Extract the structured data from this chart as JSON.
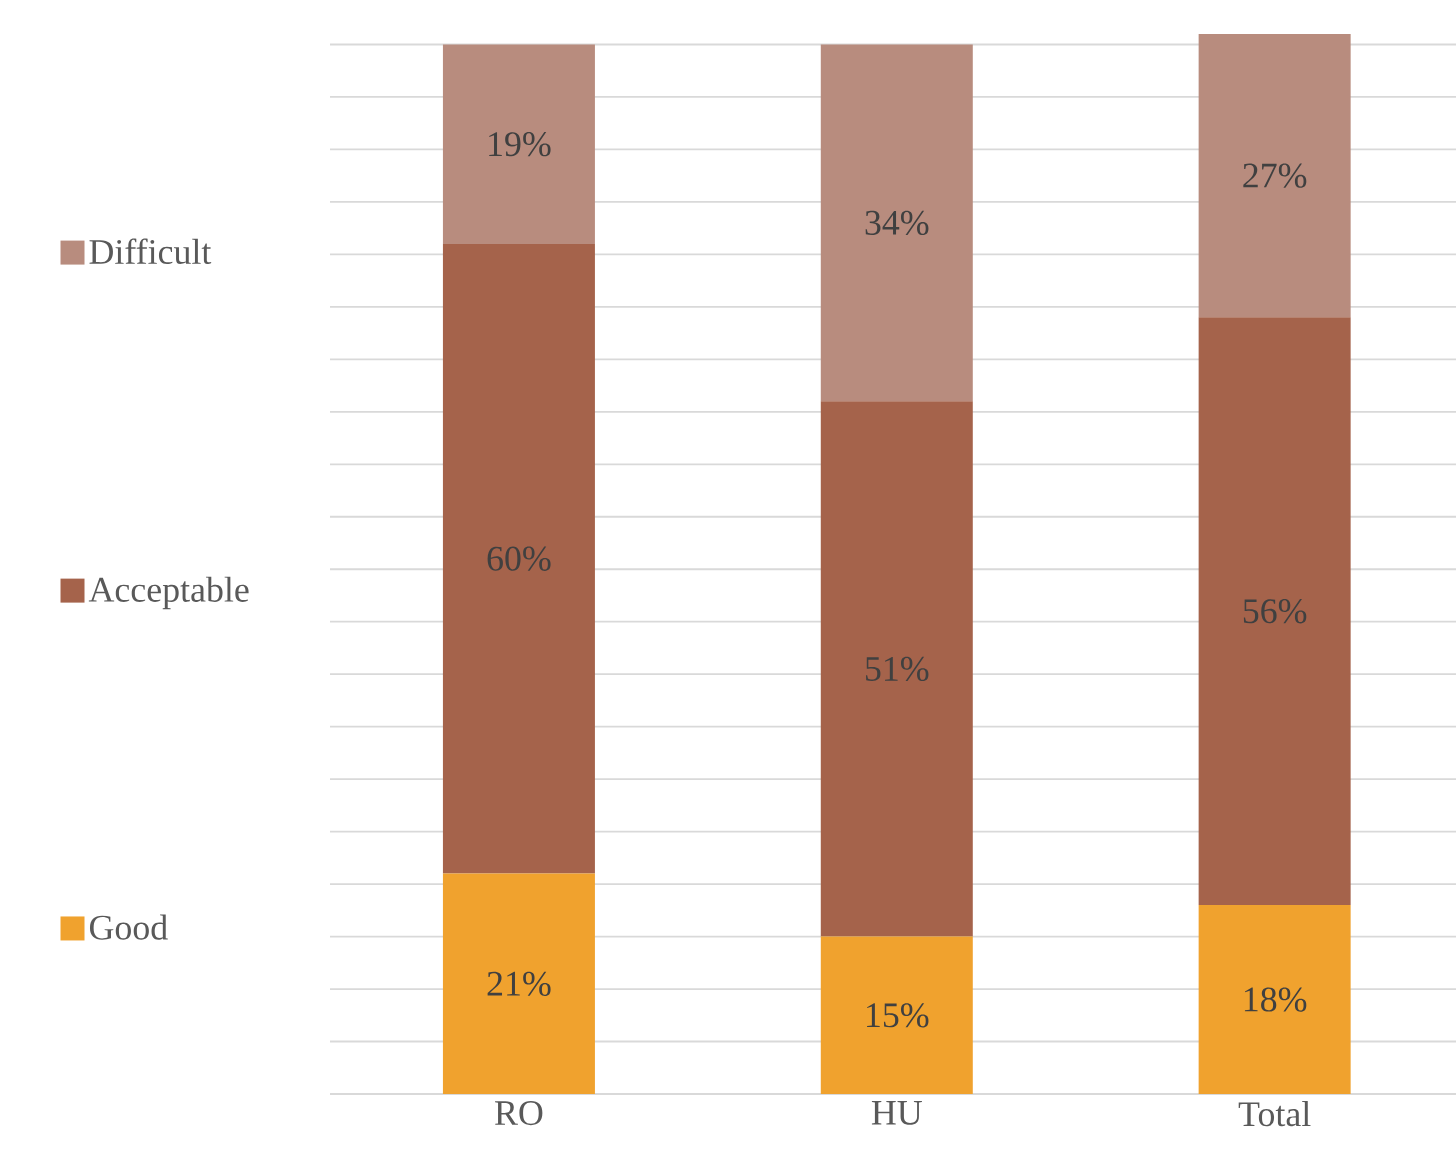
{
  "chart_data": {
    "type": "bar",
    "stacked": true,
    "categories": [
      "RO",
      "HU",
      "Total"
    ],
    "series": [
      {
        "name": "Good",
        "color": "#f0a22e",
        "values": [
          21,
          15,
          18
        ],
        "value_labels": [
          "21%",
          "15%",
          "18%"
        ]
      },
      {
        "name": "Acceptable",
        "color": "#a5634b",
        "values": [
          60,
          51,
          56
        ],
        "value_labels": [
          "60%",
          "51%",
          "56%"
        ]
      },
      {
        "name": "Difficult",
        "color": "#b88c7e",
        "values": [
          19,
          34,
          27
        ],
        "value_labels": [
          "19%",
          "34%",
          "27%"
        ]
      }
    ],
    "grid": "y",
    "legend": "left",
    "tick_labels": "x"
  }
}
